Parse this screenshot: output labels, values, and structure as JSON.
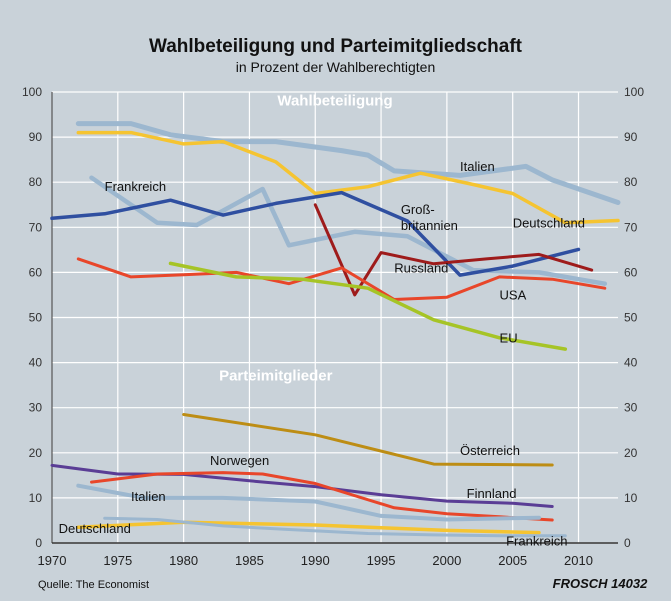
{
  "header": {
    "title": "Wahlbeteiligung und Parteimitgliedschaft",
    "subtitle": "in Prozent der Wahlberechtigten"
  },
  "footer": {
    "source": "Quelle: The Economist",
    "credit": "FROSCH 14032"
  },
  "colors": {
    "background": "#c9d2d9",
    "grid": "#ffffff",
    "axis": "#333333"
  },
  "chart_data": {
    "type": "line",
    "xlim": [
      1970,
      2013
    ],
    "ylim": [
      0,
      100
    ],
    "grid": true,
    "x_ticks": [
      1970,
      1975,
      1980,
      1985,
      1990,
      1995,
      2000,
      2005,
      2010
    ],
    "y_ticks": [
      0,
      10,
      20,
      30,
      40,
      50,
      60,
      70,
      80,
      90,
      100
    ],
    "section_labels": [
      {
        "text": "Wahlbeteiligung",
        "x": 1991.5,
        "y": 97
      },
      {
        "text": "Parteimitglieder",
        "x": 1987,
        "y": 36
      }
    ],
    "series": [
      {
        "name": "Italien",
        "group": "Wahlbeteiligung",
        "color": "#9cb7cf",
        "width": 5,
        "x": [
          1972,
          1976,
          1979,
          1983,
          1987,
          1992,
          1994,
          1996,
          2001,
          2006,
          2008,
          2013
        ],
        "y": [
          93,
          93,
          90.5,
          89,
          89,
          87,
          86,
          82.5,
          81.5,
          83.5,
          80.5,
          75.5
        ],
        "label": {
          "text": "Italien",
          "x": 2001,
          "y": 82.5
        }
      },
      {
        "name": "Deutschland",
        "group": "Wahlbeteiligung",
        "color": "#f5c431",
        "width": 3.5,
        "x": [
          1972,
          1976,
          1980,
          1983,
          1987,
          1990,
          1994,
          1998,
          2002,
          2005,
          2009,
          2013
        ],
        "y": [
          91,
          91,
          88.5,
          89,
          84.5,
          77.5,
          79,
          82,
          79.5,
          77.5,
          71,
          71.5
        ],
        "label": {
          "text": "Deutschland",
          "x": 2005,
          "y": 70
        }
      },
      {
        "name": "Frankreich",
        "group": "Wahlbeteiligung",
        "color": "#9cb7cf",
        "width": 4.5,
        "x": [
          1973,
          1978,
          1981,
          1986,
          1988,
          1993,
          1997,
          2002,
          2007,
          2012
        ],
        "y": [
          81,
          71,
          70.5,
          78.5,
          66,
          69,
          68,
          60.5,
          60,
          57.5
        ],
        "label": {
          "text": "Frankreich",
          "x": 1974,
          "y": 78
        }
      },
      {
        "name": "Großbritannien",
        "group": "Wahlbeteiligung",
        "color": "#2f4fa0",
        "width": 3.5,
        "x": [
          1970,
          1974,
          1979,
          1983,
          1987,
          1992,
          1997,
          2001,
          2005,
          2010
        ],
        "y": [
          72,
          73,
          76,
          72.7,
          75.3,
          77.7,
          71.4,
          59.4,
          61.4,
          65.1
        ],
        "label": {
          "lines": [
            "Groß-",
            "britannien"
          ],
          "x": 1996.5,
          "y": 73
        }
      },
      {
        "name": "Russland",
        "group": "Wahlbeteiligung",
        "color": "#9e1b1b",
        "width": 3,
        "x": [
          1990,
          1993,
          1995,
          1999,
          2003,
          2007,
          2011
        ],
        "y": [
          75,
          55,
          64.4,
          61.9,
          63,
          64,
          60.5
        ],
        "label": {
          "text": "Russland",
          "x": 1996,
          "y": 60
        }
      },
      {
        "name": "USA",
        "group": "Wahlbeteiligung",
        "color": "#e8462a",
        "width": 3,
        "x": [
          1972,
          1976,
          1980,
          1984,
          1988,
          1992,
          1996,
          2000,
          2004,
          2008,
          2012
        ],
        "y": [
          63,
          59,
          59.5,
          60,
          57.5,
          61,
          54,
          54.5,
          59,
          58.5,
          56.5
        ],
        "label": {
          "text": "USA",
          "x": 2004,
          "y": 54
        }
      },
      {
        "name": "EU",
        "group": "Wahlbeteiligung",
        "color": "#a6c426",
        "width": 3.5,
        "x": [
          1979,
          1984,
          1989,
          1994,
          1999,
          2004,
          2009
        ],
        "y": [
          62,
          59,
          58.5,
          56.5,
          49.5,
          45.5,
          43
        ],
        "label": {
          "text": "EU",
          "x": 2004,
          "y": 44.5
        }
      },
      {
        "name": "Österreich",
        "group": "Parteimitglieder",
        "color": "#bd8d14",
        "width": 3,
        "x": [
          1980,
          1990,
          1999,
          2008
        ],
        "y": [
          28.5,
          24,
          17.5,
          17.3
        ],
        "label": {
          "text": "Österreich",
          "x": 2001,
          "y": 19.5
        }
      },
      {
        "name": "Finnland",
        "group": "Parteimitglieder",
        "color": "#5a3d95",
        "width": 3,
        "x": [
          1970,
          1975,
          1980,
          1985,
          1990,
          1995,
          2000,
          2005,
          2008
        ],
        "y": [
          17.2,
          15.3,
          15.2,
          13.8,
          12.5,
          10.7,
          9.3,
          8.8,
          8.1
        ],
        "label": {
          "text": "Finnland",
          "x": 2001.5,
          "y": 10
        }
      },
      {
        "name": "Norwegen",
        "group": "Parteimitglieder",
        "color": "#e8462a",
        "width": 3,
        "x": [
          1973,
          1978,
          1983,
          1986,
          1990,
          1996,
          2000,
          2004,
          2008
        ],
        "y": [
          13.5,
          15.3,
          15.6,
          15.3,
          13.2,
          7.8,
          6.5,
          5.8,
          5.1
        ],
        "label": {
          "text": "Norwegen",
          "x": 1982,
          "y": 17.3
        }
      },
      {
        "name": "Italien",
        "group": "Parteimitglieder",
        "color": "#9cb7cf",
        "width": 4,
        "x": [
          1972,
          1977,
          1983,
          1990,
          1995,
          2000,
          2007
        ],
        "y": [
          12.7,
          10,
          10,
          9.2,
          6,
          5.2,
          5.6
        ],
        "label": {
          "text": "Italien",
          "x": 1976,
          "y": 9.3
        }
      },
      {
        "name": "Deutschland",
        "group": "Parteimitglieder",
        "color": "#f5c431",
        "width": 3.5,
        "x": [
          1972,
          1977,
          1980,
          1985,
          1990,
          1995,
          2000,
          2007
        ],
        "y": [
          3.5,
          4.2,
          4.6,
          4.3,
          4.0,
          3.4,
          2.8,
          2.3
        ],
        "label": {
          "text": "Deutschland",
          "x": 1970.5,
          "y": 2.2
        }
      },
      {
        "name": "Frankreich",
        "group": "Parteimitglieder",
        "color": "#9cb7cf",
        "width": 3,
        "x": [
          1974,
          1978,
          1983,
          1988,
          1994,
          1999,
          2004,
          2009
        ],
        "y": [
          5.5,
          5.2,
          3.8,
          3.0,
          2.1,
          1.8,
          1.6,
          1.6
        ],
        "label": {
          "text": "Frankreich",
          "x": 2004.5,
          "y": -0.5
        }
      }
    ]
  }
}
